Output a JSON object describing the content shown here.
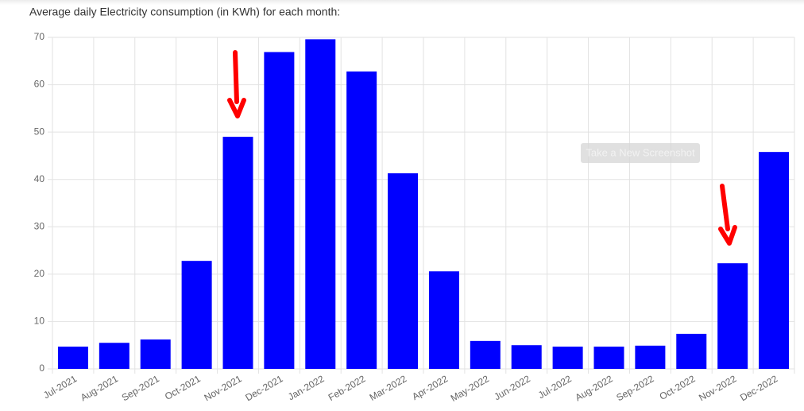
{
  "chart_data": {
    "type": "bar",
    "title": "Average daily Electricity consumption (in KWh) for each month:",
    "categories": [
      "Jul-2021",
      "Aug-2021",
      "Sep-2021",
      "Oct-2021",
      "Nov-2021",
      "Dec-2021",
      "Jan-2022",
      "Feb-2022",
      "Mar-2022",
      "Apr-2022",
      "May-2022",
      "Jun-2022",
      "Jul-2022",
      "Aug-2022",
      "Sep-2022",
      "Oct-2022",
      "Nov-2022",
      "Dec-2022"
    ],
    "values": [
      4.7,
      5.5,
      6.2,
      22.8,
      49.0,
      66.9,
      69.6,
      62.8,
      41.3,
      20.6,
      5.9,
      5.0,
      4.7,
      4.7,
      4.9,
      7.4,
      22.3,
      45.8
    ],
    "color": "#0000ff",
    "ylim": [
      0,
      70
    ],
    "yticks": [
      0,
      10,
      20,
      30,
      40,
      50,
      60,
      70
    ],
    "grid": true,
    "overlay_button": "Take a New Screenshot"
  }
}
